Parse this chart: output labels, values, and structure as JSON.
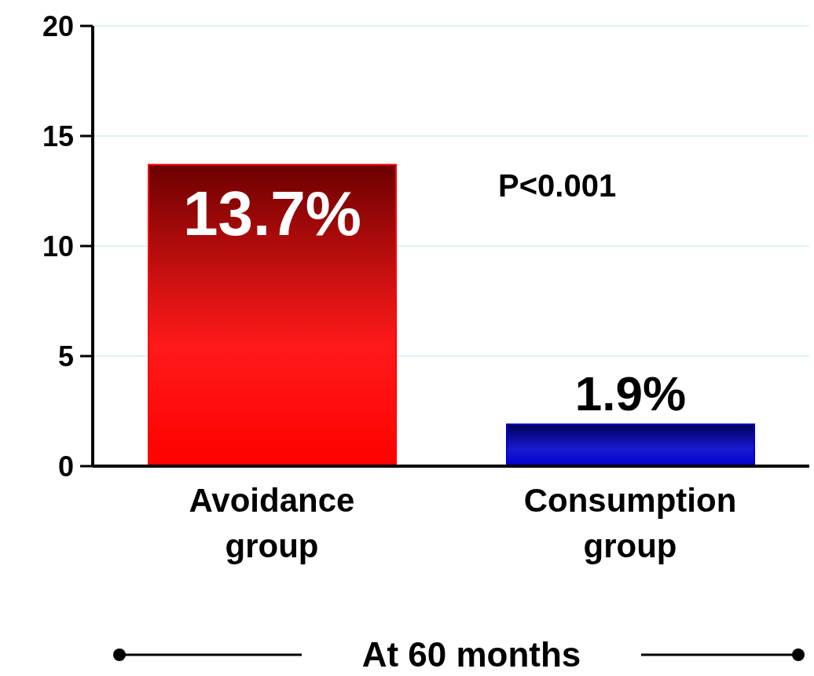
{
  "chart_data": {
    "type": "bar",
    "categories": [
      "Avoidance group",
      "Consumption group"
    ],
    "values": [
      13.7,
      1.9
    ],
    "colors": [
      "#ff0000",
      "#0000cc"
    ],
    "value_labels": [
      "13.7%",
      "1.9%"
    ],
    "ylim": [
      0,
      20
    ],
    "yticks": [
      0,
      5,
      10,
      15,
      20
    ],
    "grid": "y",
    "xlabel": "At 60 months",
    "annotations": [
      "P<0.001"
    ]
  }
}
